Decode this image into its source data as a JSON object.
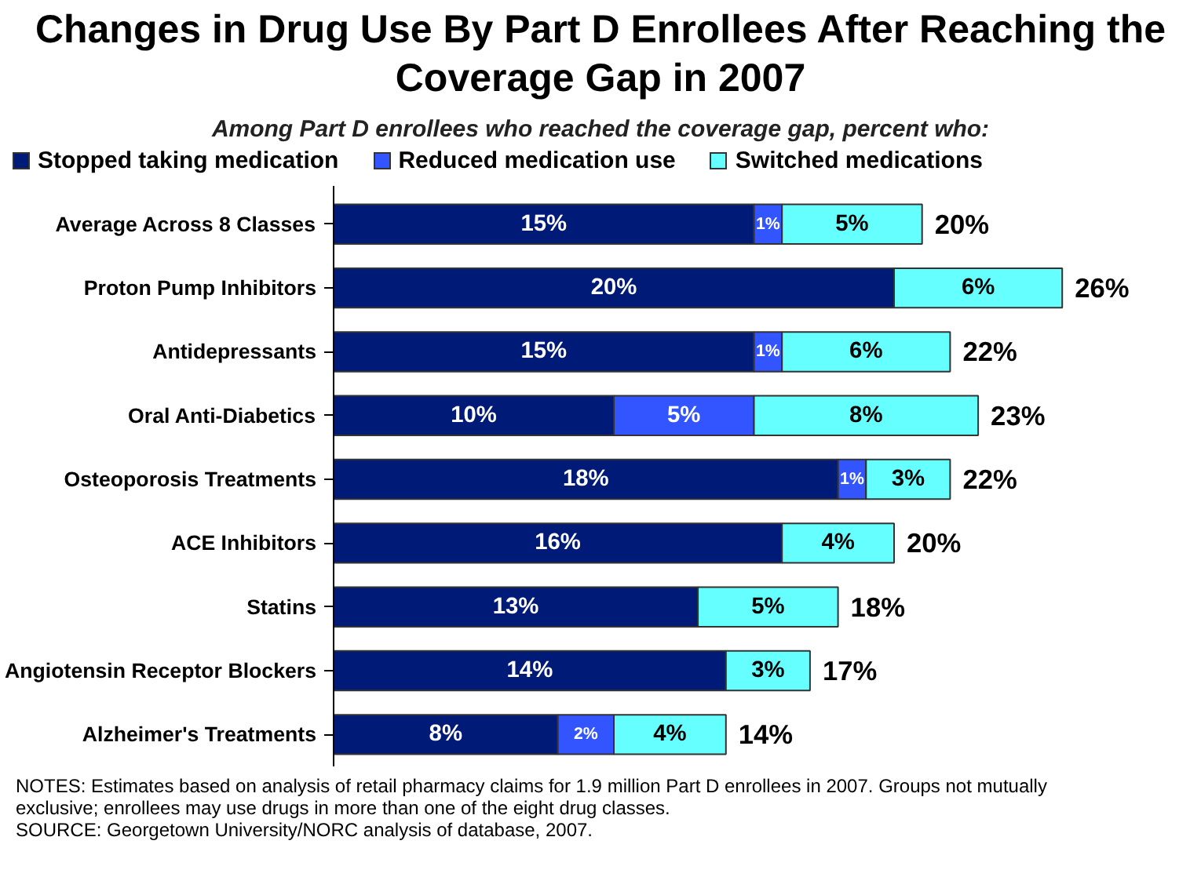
{
  "chart_data": {
    "type": "bar",
    "orientation": "horizontal",
    "stacked": true,
    "title": "Changes in Drug Use By Part D Enrollees After Reaching the Coverage Gap in 2007",
    "subtitle": "Among Part D enrollees who reached the coverage gap, percent who:",
    "categories": [
      "Average Across 8 Classes",
      "Proton Pump Inhibitors",
      "Antidepressants",
      "Oral Anti-Diabetics",
      "Osteoporosis Treatments",
      "ACE Inhibitors",
      "Statins",
      "Angiotensin Receptor Blockers",
      "Alzheimer's Treatments"
    ],
    "series": [
      {
        "name": "Stopped taking medication",
        "color": "#001a78",
        "values": [
          15,
          20,
          15,
          10,
          18,
          16,
          13,
          14,
          8
        ],
        "value_labels": [
          "15%",
          "20%",
          "15%",
          "10%",
          "18%",
          "16%",
          "13%",
          "14%",
          "8%"
        ]
      },
      {
        "name": "Reduced medication use",
        "color": "#3355ff",
        "values": [
          1,
          null,
          1,
          5,
          1,
          null,
          null,
          null,
          2
        ],
        "value_labels": [
          "1%",
          null,
          "1%",
          "5%",
          "1%",
          null,
          null,
          null,
          "2%"
        ]
      },
      {
        "name": "Switched medications",
        "color": "#66ffff",
        "values": [
          5,
          6,
          6,
          8,
          3,
          4,
          5,
          3,
          4
        ],
        "value_labels": [
          "5%",
          "6%",
          "6%",
          "8%",
          "3%",
          "4%",
          "5%",
          "3%",
          "4%"
        ]
      }
    ],
    "totals": [
      "20%",
      "26%",
      "22%",
      "23%",
      "22%",
      "20%",
      "18%",
      "17%",
      "14%"
    ],
    "legend": "top",
    "grid": false,
    "tick_labels": "y",
    "annotations": [
      "NOTES: Estimates based on analysis of retail pharmacy claims for 1.9 million Part D enrollees in 2007.  Groups not mutually exclusive; enrollees may use drugs in more than one of the eight drug classes.",
      "SOURCE: Georgetown University/NORC analysis of database, 2007."
    ]
  }
}
